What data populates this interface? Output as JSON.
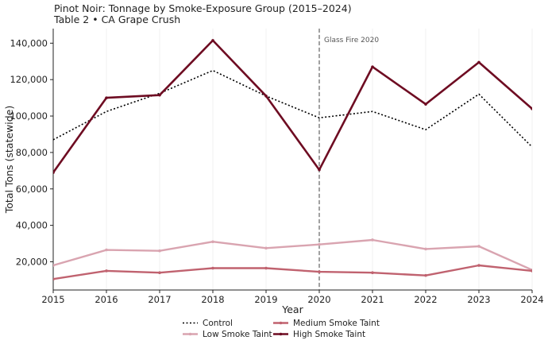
{
  "chart_data": {
    "type": "line",
    "title": "Pinot Noir: Tonnage by Smoke-Exposure Group (2015–2024)",
    "subtitle": "Table 2 • CA Grape Crush",
    "xlabel": "Year",
    "ylabel": "Total Tons (statewide)",
    "x": [
      2015,
      2016,
      2017,
      2018,
      2019,
      2020,
      2021,
      2022,
      2023,
      2024
    ],
    "xlim": [
      2015,
      2024
    ],
    "ylim": [
      4500,
      148000
    ],
    "yticks": [
      20000,
      40000,
      60000,
      80000,
      100000,
      120000,
      140000
    ],
    "ytick_labels": [
      "20,000",
      "40,000",
      "60,000",
      "80,000",
      "100,000",
      "120,000",
      "140,000"
    ],
    "annotation": {
      "x": 2020,
      "label": "Glass Fire 2020"
    },
    "legend_position": "bottom-center",
    "series": [
      {
        "name": "Control",
        "color": "#000000",
        "style": "dotted",
        "values": [
          87000,
          102500,
          112500,
          125000,
          111000,
          99000,
          102500,
          92500,
          112000,
          83000
        ]
      },
      {
        "name": "Low Smoke Taint",
        "color": "#d9a4b0",
        "style": "solid",
        "values": [
          18000,
          26500,
          26000,
          31000,
          27500,
          29500,
          32000,
          27000,
          28500,
          15500
        ]
      },
      {
        "name": "Medium Smoke Taint",
        "color": "#c0626f",
        "style": "solid",
        "values": [
          10500,
          15000,
          14000,
          16500,
          16500,
          14500,
          14000,
          12500,
          18000,
          15000
        ]
      },
      {
        "name": "High Smoke Taint",
        "color": "#6e0c22",
        "style": "solid",
        "values": [
          69000,
          110000,
          111500,
          141500,
          111000,
          70500,
          127000,
          106500,
          129500,
          104000
        ]
      }
    ]
  }
}
